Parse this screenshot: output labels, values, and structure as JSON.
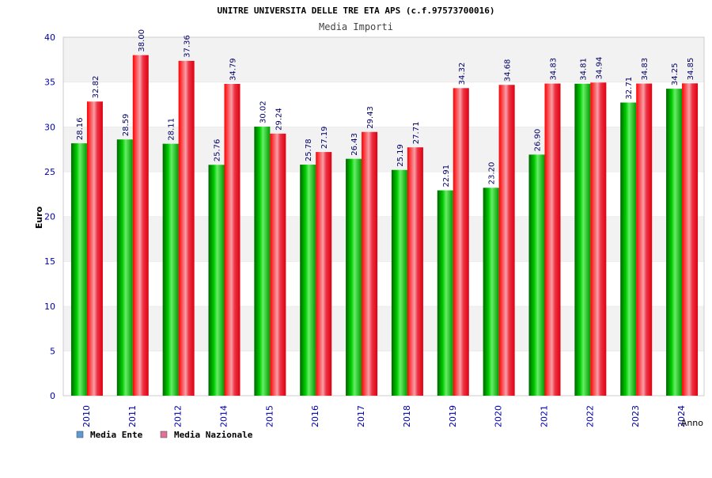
{
  "chart_data": {
    "type": "bar",
    "title": "UNITRE UNIVERSITA DELLE TRE ETA APS (c.f.97573700016)",
    "subtitle": "Media Importi",
    "xlabel": "Anno",
    "ylabel": "Euro",
    "ylim": [
      0,
      40
    ],
    "yticks": [
      "0",
      "5",
      "10",
      "15",
      "20",
      "25",
      "30",
      "35",
      "40"
    ],
    "grid": true,
    "legend_position": "bottom-left",
    "categories": [
      "2010",
      "2011",
      "2012",
      "2014",
      "2015",
      "2016",
      "2017",
      "2018",
      "2019",
      "2020",
      "2021",
      "2022",
      "2023",
      "2024"
    ],
    "series": [
      {
        "name": "Media Ente",
        "color": "#00aa00",
        "legend_color": "#5b9bd5",
        "values": [
          28.16,
          28.59,
          28.11,
          25.76,
          30.02,
          25.78,
          26.43,
          25.19,
          22.91,
          23.2,
          26.9,
          34.81,
          32.71,
          34.25
        ],
        "labels": [
          "28.16",
          "28.59",
          "28.11",
          "25.76",
          "30.02",
          "25.78",
          "26.43",
          "25.19",
          "22.91",
          "23.20",
          "26.90",
          "34.81",
          "32.71",
          "34.25"
        ]
      },
      {
        "name": "Media Nazionale",
        "color": "#ee0011",
        "legend_color": "#e0709a",
        "values": [
          32.82,
          38.0,
          37.36,
          34.79,
          29.24,
          27.19,
          29.43,
          27.71,
          34.32,
          34.68,
          34.83,
          34.94,
          34.83,
          34.85
        ],
        "labels": [
          "32.82",
          "38.00",
          "37.36",
          "34.79",
          "29.24",
          "27.19",
          "29.43",
          "27.71",
          "34.32",
          "34.68",
          "34.83",
          "34.94",
          "34.83",
          "34.85"
        ]
      }
    ]
  },
  "colors": {
    "axis_text": "#0000aa",
    "label_text": "#000066",
    "band_light": "#f2f2f2",
    "band_white": "#ffffff",
    "frame": "#cccccc"
  }
}
